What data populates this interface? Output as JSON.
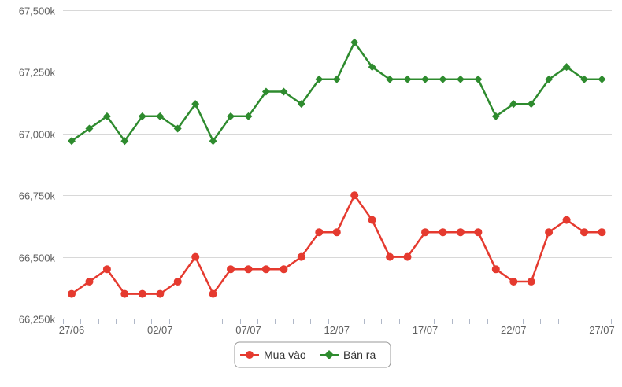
{
  "chart_data": {
    "type": "line",
    "x_tick_labels": [
      "27/06",
      "02/07",
      "07/07",
      "12/07",
      "17/07",
      "22/07",
      "27/07"
    ],
    "y_tick_labels": [
      "66,250k",
      "66,500k",
      "66,750k",
      "67,000k",
      "67,250k",
      "67,500k"
    ],
    "ylim": [
      66250,
      67500
    ],
    "grid": true,
    "legend_position": "bottom-center",
    "series": [
      {
        "name": "Mua vào",
        "color": "#e53a2f",
        "marker": "circle",
        "values": [
          66350,
          66400,
          66450,
          66350,
          66350,
          66350,
          66400,
          66500,
          66350,
          66450,
          66450,
          66450,
          66450,
          66500,
          66600,
          66600,
          66750,
          66650,
          66500,
          66500,
          66600,
          66600,
          66600,
          66600,
          66450,
          66400,
          66400,
          66600,
          66650,
          66600,
          66600
        ]
      },
      {
        "name": "Bán ra",
        "color": "#2e8b2e",
        "marker": "diamond",
        "values": [
          66970,
          67020,
          67070,
          66970,
          67070,
          67070,
          67020,
          67120,
          66970,
          67070,
          67070,
          67170,
          67170,
          67120,
          67220,
          67220,
          67370,
          67270,
          67220,
          67220,
          67220,
          67220,
          67220,
          67220,
          67070,
          67120,
          67120,
          67220,
          67270,
          67220,
          67220
        ]
      }
    ]
  }
}
